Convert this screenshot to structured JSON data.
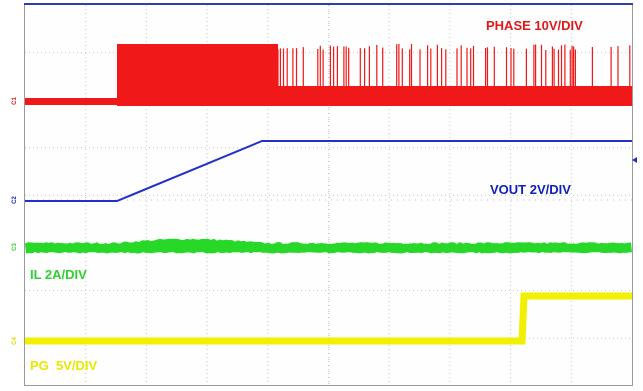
{
  "scope": {
    "phase": {
      "label": "PHASE 10V/DIV",
      "channel": "C1"
    },
    "vout": {
      "label": "VOUT 2V/DIV",
      "channel": "C2"
    },
    "il": {
      "label": "IL 2A/DIV",
      "channel": "C3"
    },
    "pg": {
      "label": "PG  5V/DIV",
      "channel": "C4"
    }
  }
}
